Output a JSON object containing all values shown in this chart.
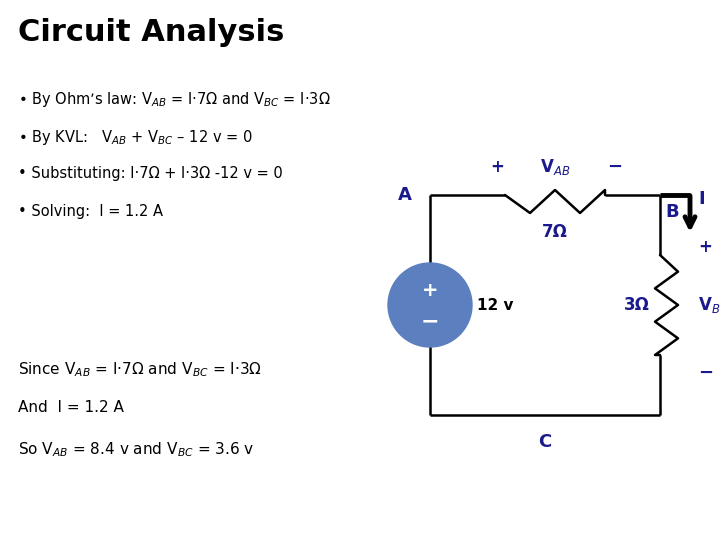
{
  "title": "Circuit Analysis",
  "title_fontsize": 22,
  "title_fontweight": "bold",
  "title_color": "#000000",
  "bg_color": "#ffffff",
  "text_color": "#000000",
  "circuit_color": "#1a1a8c",
  "bullet_lines": [
    "By Ohm’s law: V$_{AB}$ = I·7Ω and V$_{BC}$ = I·3Ω",
    "By KVL:   V$_{AB}$ + V$_{BC}$ – 12 v = 0",
    "Substituting: I·7Ω + I·3Ω -12 v = 0",
    "Solving:  I = 1.2 A"
  ],
  "bottom_lines": [
    "Since V$_{AB}$ = I·7Ω and V$_{BC}$ = I·3Ω",
    "And  I = 1.2 A",
    "So V$_{AB}$ = 8.4 v and V$_{BC}$ = 3.6 v"
  ],
  "circuit": {
    "color": "#1a1a8c",
    "wire_color": "#000000",
    "arrow_color": "#000000",
    "source_color": "#5b7fbf",
    "resistor_7_label": "7Ω",
    "resistor_3_label": "3Ω",
    "vab_label": "V$_{AB}$",
    "vbc_label": "V$_{BC}$",
    "source_label": "12 v",
    "current_label": "I",
    "node_A_label": "A",
    "node_B_label": "B",
    "node_C_label": "C",
    "plus_label": "+",
    "minus_label": "-"
  }
}
